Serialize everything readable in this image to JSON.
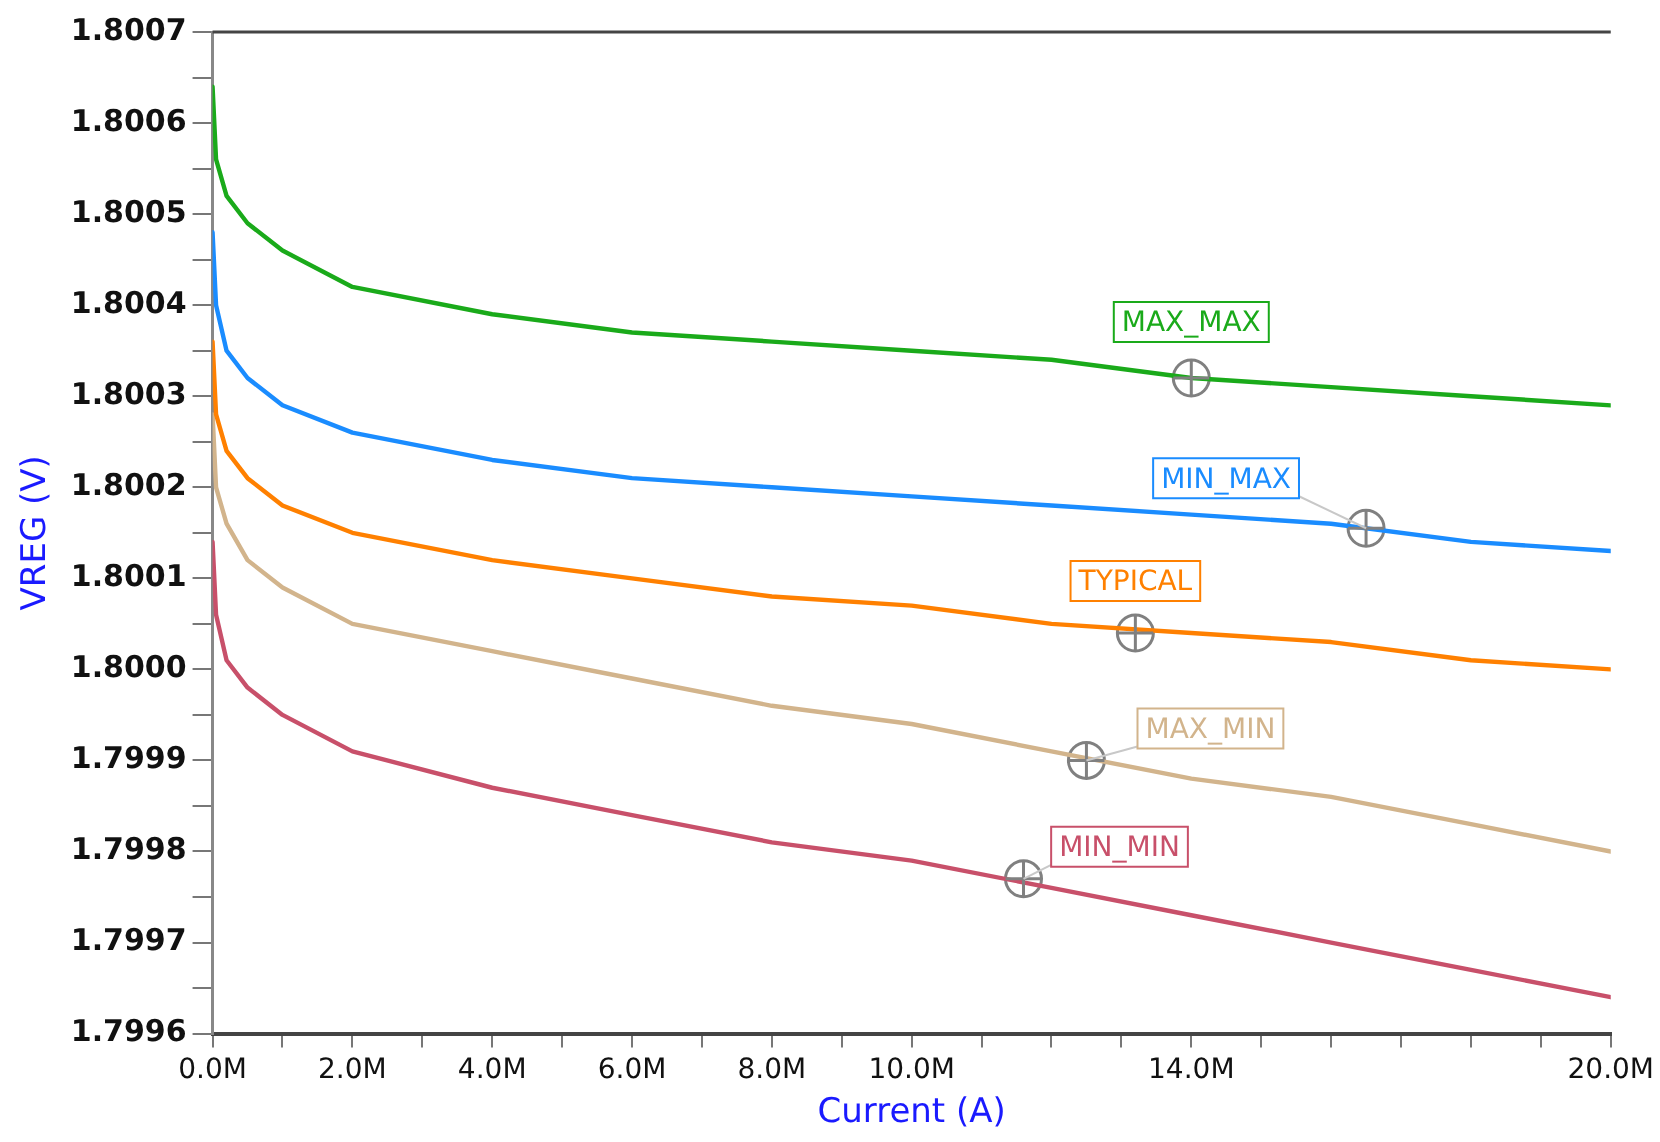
{
  "chart_data": {
    "type": "line",
    "xlabel": "Current (A)",
    "ylabel": "VREG (V)",
    "legend": false,
    "grid": false,
    "marker": "none",
    "line_style": "solid",
    "x": [
      0,
      50000,
      200000,
      500000,
      1000000,
      2000000,
      4000000,
      6000000,
      8000000,
      10000000,
      12000000,
      14000000,
      16000000,
      18000000,
      20000000
    ],
    "series": [
      {
        "name": "MAX_MAX",
        "color": "#1aaa1a",
        "values": [
          1.80064,
          1.80056,
          1.80052,
          1.80049,
          1.80046,
          1.80042,
          1.80039,
          1.80037,
          1.80036,
          1.80035,
          1.80034,
          1.80032,
          1.80031,
          1.8003,
          1.80029
        ]
      },
      {
        "name": "MIN_MAX",
        "color": "#1a8cff",
        "values": [
          1.80048,
          1.8004,
          1.80035,
          1.80032,
          1.80029,
          1.80026,
          1.80023,
          1.80021,
          1.8002,
          1.80019,
          1.80018,
          1.80017,
          1.80016,
          1.80014,
          1.80013
        ]
      },
      {
        "name": "TYPICAL",
        "color": "#ff8000",
        "values": [
          1.80036,
          1.80028,
          1.80024,
          1.80021,
          1.80018,
          1.80015,
          1.80012,
          1.8001,
          1.80008,
          1.80007,
          1.80005,
          1.80004,
          1.80003,
          1.80001,
          1.8
        ]
      },
      {
        "name": "MAX_MIN",
        "color": "#d2b48c",
        "values": [
          1.80028,
          1.8002,
          1.80016,
          1.80012,
          1.80009,
          1.80005,
          1.80002,
          1.79999,
          1.79996,
          1.79994,
          1.79991,
          1.79988,
          1.79986,
          1.79983,
          1.7998
        ]
      },
      {
        "name": "MIN_MIN",
        "color": "#c8506a",
        "values": [
          1.80014,
          1.80006,
          1.80001,
          1.79998,
          1.79995,
          1.79991,
          1.79987,
          1.79984,
          1.79981,
          1.79979,
          1.79976,
          1.79973,
          1.7997,
          1.79967,
          1.79964
        ]
      },
      {
        "type": "scatter",
        "color": "#808080",
        "marker": "circle",
        "x": [
          14000000,
          16500000,
          13200000,
          12500000,
          11600000
        ],
        "values": [
          1.80032,
          1.800155,
          1.80004,
          1.7999,
          1.79977
        ]
      }
    ],
    "xlim": [
      0,
      20000000
    ],
    "xticks": [
      {
        "value": 0,
        "label": "0.0M"
      },
      {
        "value": 1000000,
        "label": null
      },
      {
        "value": 2000000,
        "label": "2.0M"
      },
      {
        "value": 3000000,
        "label": null
      },
      {
        "value": 4000000,
        "label": "4.0M"
      },
      {
        "value": 5000000,
        "label": null
      },
      {
        "value": 6000000,
        "label": "6.0M"
      },
      {
        "value": 7000000,
        "label": null
      },
      {
        "value": 8000000,
        "label": "8.0M"
      },
      {
        "value": 9000000,
        "label": null
      },
      {
        "value": 10000000,
        "label": "10.0M"
      },
      {
        "value": 11000000,
        "label": null
      },
      {
        "value": 12000000,
        "label": null
      },
      {
        "value": 13000000,
        "label": null
      },
      {
        "value": 14000000,
        "label": "14.0M"
      },
      {
        "value": 15000000,
        "label": null
      },
      {
        "value": 16000000,
        "label": null
      },
      {
        "value": 17000000,
        "label": null
      },
      {
        "value": 18000000,
        "label": null
      },
      {
        "value": 19000000,
        "label": null
      },
      {
        "value": 20000000,
        "label": "20.0M"
      }
    ],
    "ylim": [
      1.7996,
      1.8007
    ],
    "yticks": [
      {
        "value": 1.7996,
        "label": "1.7996"
      },
      {
        "value": 1.79965,
        "label": null
      },
      {
        "value": 1.7997,
        "label": "1.7997"
      },
      {
        "value": 1.79975,
        "label": null
      },
      {
        "value": 1.7998,
        "label": "1.7998"
      },
      {
        "value": 1.79985,
        "label": null
      },
      {
        "value": 1.7999,
        "label": "1.7999"
      },
      {
        "value": 1.79995,
        "label": null
      },
      {
        "value": 1.8,
        "label": "1.8000"
      },
      {
        "value": 1.80005,
        "label": null
      },
      {
        "value": 1.8001,
        "label": "1.8001"
      },
      {
        "value": 1.80015,
        "label": null
      },
      {
        "value": 1.8002,
        "label": "1.8002"
      },
      {
        "value": 1.80025,
        "label": null
      },
      {
        "value": 1.8003,
        "label": "1.8003"
      },
      {
        "value": 1.80035,
        "label": null
      },
      {
        "value": 1.8004,
        "label": "1.8004"
      },
      {
        "value": 1.80045,
        "label": null
      },
      {
        "value": 1.8005,
        "label": "1.8005"
      },
      {
        "value": 1.80055,
        "label": null
      },
      {
        "value": 1.8006,
        "label": "1.8006"
      },
      {
        "value": 1.80065,
        "label": null
      },
      {
        "value": 1.8007,
        "label": "1.8007"
      }
    ]
  }
}
